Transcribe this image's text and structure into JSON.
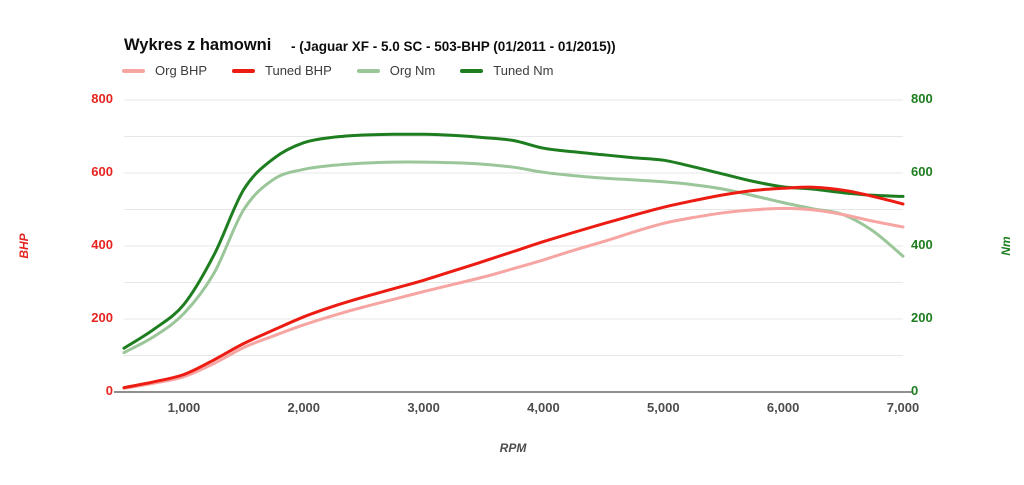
{
  "header": {
    "title": "Wykres z hamowni",
    "subtitle": "- (Jaguar XF - 5.0 SC - 503-BHP (01/2011 - 01/2015))"
  },
  "colors": {
    "background": "#ffffff",
    "title_text": "#0d0d0d",
    "legend_text": "#3c3c3c",
    "x_tick_text": "#4d4d4d",
    "grid": "#e7e7e7",
    "baseline": "#8f8f8f",
    "left_axis": "#e62420",
    "right_axis": "#1d7d1f"
  },
  "chart_data": {
    "type": "line",
    "title": "Wykres z hamowni - (Jaguar XF - 5.0 SC - 503-BHP (01/2011 - 01/2015))",
    "xlabel": "RPM",
    "x_range": [
      500,
      7000
    ],
    "x_ticks": {
      "values": [
        1000,
        2000,
        3000,
        4000,
        5000,
        6000,
        7000
      ],
      "labels": [
        "1,000",
        "2,000",
        "3,000",
        "4,000",
        "5,000",
        "6,000",
        "7,000"
      ]
    },
    "left_axis": {
      "label": "BHP",
      "color": "#e62420",
      "range": [
        0,
        800
      ],
      "tick_values": [
        0,
        200,
        400,
        600,
        800
      ],
      "tick_labels": [
        "0",
        "200",
        "400",
        "600",
        "800"
      ]
    },
    "right_axis": {
      "label": "Nm",
      "color": "#1d7d1f",
      "range": [
        0,
        800
      ],
      "tick_values": [
        0,
        200,
        400,
        600,
        800
      ],
      "tick_labels": [
        "0",
        "200",
        "400",
        "600",
        "800"
      ]
    },
    "grid": {
      "step": 100,
      "on": true
    },
    "legend_position": "top",
    "x_rpm": [
      500,
      750,
      1000,
      1250,
      1500,
      1750,
      2000,
      2250,
      2500,
      2750,
      3000,
      3250,
      3500,
      3750,
      4000,
      4250,
      4500,
      4750,
      5000,
      5250,
      5500,
      5750,
      6000,
      6250,
      6500,
      6750,
      7000
    ],
    "series": [
      {
        "name": "Org BHP",
        "axis": "left",
        "color": "#f7a5a2",
        "values": [
          10,
          24,
          42,
          78,
          122,
          154,
          184,
          210,
          233,
          254,
          275,
          295,
          315,
          338,
          362,
          388,
          412,
          438,
          462,
          478,
          491,
          499,
          503,
          499,
          486,
          468,
          452
        ]
      },
      {
        "name": "Tuned BHP",
        "axis": "left",
        "color": "#ec1c13",
        "values": [
          12,
          28,
          48,
          88,
          133,
          170,
          206,
          235,
          260,
          283,
          306,
          332,
          358,
          385,
          412,
          437,
          461,
          484,
          506,
          524,
          540,
          552,
          558,
          561,
          553,
          536,
          515
        ]
      },
      {
        "name": "Org Nm",
        "axis": "right",
        "color": "#9ac699",
        "values": [
          108,
          152,
          215,
          325,
          500,
          583,
          610,
          621,
          627,
          630,
          630,
          628,
          624,
          616,
          602,
          593,
          586,
          581,
          576,
          568,
          556,
          538,
          519,
          502,
          486,
          441,
          372
        ]
      },
      {
        "name": "Tuned Nm",
        "axis": "right",
        "color": "#1d7d1f",
        "values": [
          120,
          172,
          240,
          375,
          555,
          640,
          683,
          698,
          704,
          706,
          706,
          703,
          697,
          689,
          668,
          658,
          650,
          642,
          635,
          617,
          597,
          577,
          562,
          556,
          546,
          539,
          536
        ]
      }
    ]
  }
}
